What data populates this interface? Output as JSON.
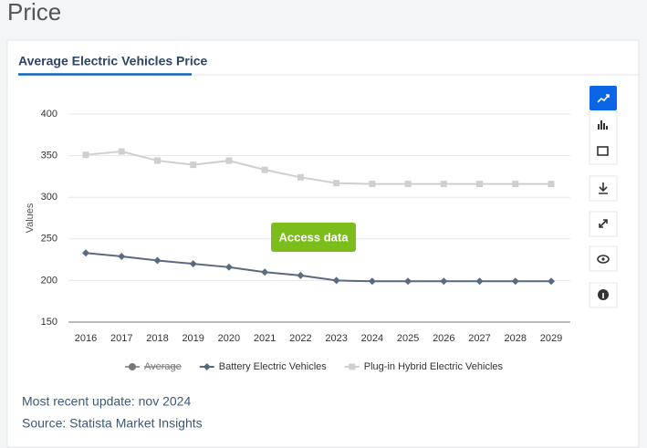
{
  "page_title": "Price",
  "tab": "Average Electric Vehicles Price",
  "button": "Access data",
  "footer": {
    "update": "Most recent update: nov 2024",
    "source": "Source: Statista Market Insights"
  },
  "chart_data": {
    "type": "line",
    "ylabel": "Values",
    "categories": [
      "2016",
      "2017",
      "2018",
      "2019",
      "2020",
      "2021",
      "2022",
      "2023",
      "2024",
      "2025",
      "2026",
      "2027",
      "2028",
      "2029"
    ],
    "ylim": [
      150,
      400
    ],
    "yticks": [
      150,
      200,
      250,
      300,
      350,
      400
    ],
    "grid": true,
    "legend": "bottom",
    "series": [
      {
        "name": "Average",
        "color": "#6b6b6b",
        "visible": false,
        "marker": "circle"
      },
      {
        "name": "Battery Electric Vehicles",
        "color": "#5b6b7f",
        "marker": "diamond",
        "values": [
          233,
          229,
          224,
          220,
          216,
          210,
          206,
          200,
          199,
          199,
          199,
          199,
          199,
          199
        ]
      },
      {
        "name": "Plug-in Hybrid Electric Vehicles",
        "color": "#cfcfcf",
        "marker": "square",
        "values": [
          351,
          355,
          344,
          339,
          344,
          333,
          324,
          317,
          316,
          316,
          316,
          316,
          316,
          316
        ]
      }
    ]
  }
}
